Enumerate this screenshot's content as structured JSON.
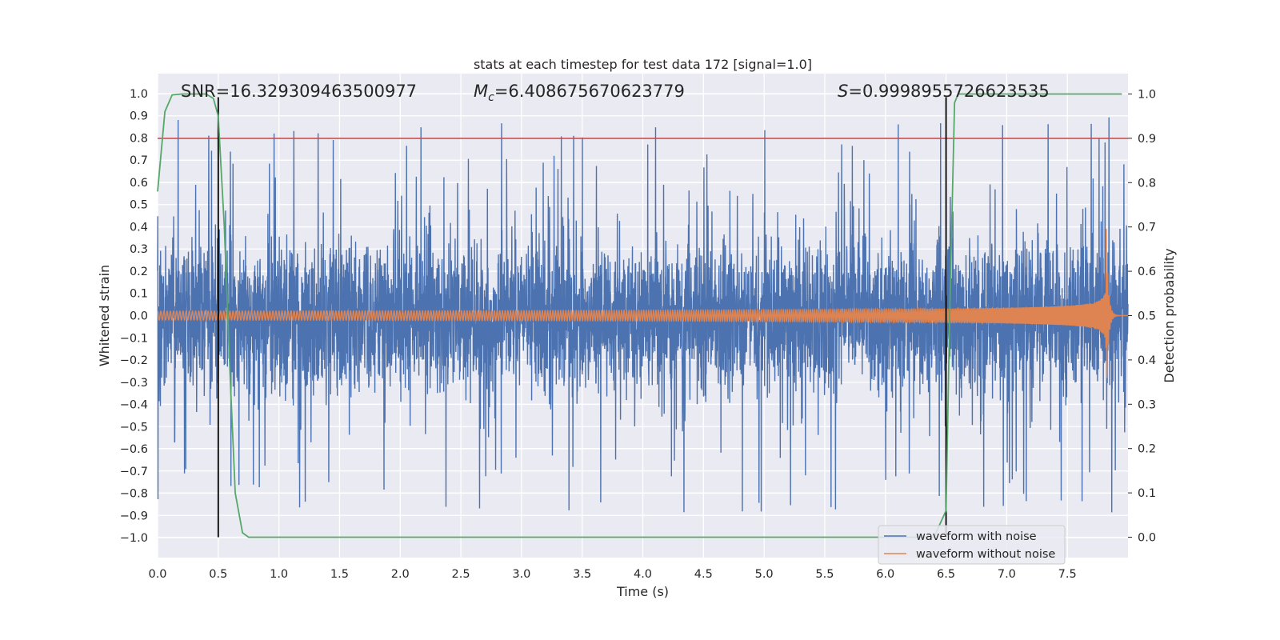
{
  "chart_data": {
    "type": "line",
    "title": "stats at each timestep for test data 172 [signal=1.0]",
    "xlabel": "Time (s)",
    "ylabel": "Whitened strain",
    "y2label": "Detection probability",
    "xlim": [
      0.0,
      8.0
    ],
    "ylim": [
      -1.09,
      1.09
    ],
    "y2lim": [
      -0.046,
      1.046
    ],
    "xticks": [
      "0.0",
      "0.5",
      "1.0",
      "1.5",
      "2.0",
      "2.5",
      "3.0",
      "3.5",
      "4.0",
      "4.5",
      "5.0",
      "5.5",
      "6.0",
      "6.5",
      "7.0",
      "7.5"
    ],
    "yticks": [
      "1.0",
      "0.9",
      "0.8",
      "0.7",
      "0.6",
      "0.5",
      "0.4",
      "0.3",
      "0.2",
      "0.1",
      "0.0",
      "−0.1",
      "−0.2",
      "−0.3",
      "−0.4",
      "−0.5",
      "−0.6",
      "−0.7",
      "−0.8",
      "−0.9",
      "−1.0"
    ],
    "y2ticks": [
      "1.0",
      "0.9",
      "0.8",
      "0.7",
      "0.6",
      "0.5",
      "0.4",
      "0.3",
      "0.2",
      "0.1",
      "0.0"
    ],
    "annotations": {
      "snr": "SNR=16.329309463500977",
      "mc_prefix": "M",
      "mc_sub": "c",
      "mc_value": "=6.408675670623779",
      "s_prefix": "S",
      "s_value": "=0.9998955726623535"
    },
    "threshold": 0.9,
    "vlines": [
      0.5,
      6.5
    ],
    "legend": {
      "placement": "lower-right",
      "entries": [
        "waveform with noise",
        "waveform without noise"
      ]
    },
    "series": [
      {
        "name": "waveform with noise",
        "color": "#4c72b0",
        "description_values": {
          "t_start": 0.0,
          "t_end": 8.0,
          "typical_amplitude": 0.3,
          "peak_min": -1.0,
          "peak_max": 0.91
        }
      },
      {
        "name": "waveform without noise",
        "color": "#dd8452",
        "description_values": {
          "t_start": 0.0,
          "t_merge": 7.82,
          "amp_start": 0.02,
          "amp_peak": 0.41
        }
      },
      {
        "name": "detection probability",
        "color": "#55a868",
        "x": [
          0.0,
          0.06,
          0.12,
          0.2,
          0.3,
          0.4,
          0.46,
          0.5,
          0.55,
          0.6,
          0.64,
          0.7,
          0.75,
          0.8,
          1.0,
          2.0,
          3.0,
          4.0,
          5.0,
          6.0,
          6.4,
          6.5,
          6.53,
          6.57,
          6.6,
          6.7,
          7.0,
          7.5,
          7.95
        ],
        "y": [
          0.78,
          0.96,
          0.998,
          1.0,
          1.0,
          1.0,
          0.99,
          0.95,
          0.7,
          0.35,
          0.1,
          0.01,
          0.0,
          0.0,
          0.0,
          0.0,
          0.0,
          0.0,
          0.0,
          0.0,
          0.0,
          0.06,
          0.5,
          0.98,
          1.0,
          1.0,
          1.0,
          1.0,
          1.0
        ]
      },
      {
        "name": "threshold",
        "color": "#c44e52",
        "x": [
          0.0,
          8.0
        ],
        "y": [
          0.9,
          0.9
        ]
      }
    ],
    "grid": true
  }
}
